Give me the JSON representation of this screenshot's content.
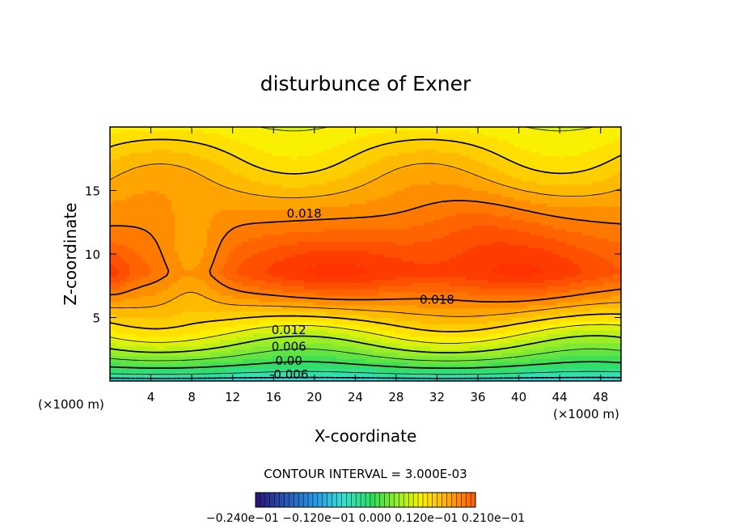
{
  "chart_data": {
    "type": "heatmap",
    "title": "disturbunce of Exner",
    "xlabel": "X-coordinate",
    "ylabel": "Z-coordinate",
    "x_unit": "(×1000 m)",
    "y_unit": "(×1000 m)",
    "xlim": [
      0,
      50
    ],
    "ylim": [
      0,
      20
    ],
    "x_ticks": [
      4,
      8,
      12,
      16,
      20,
      24,
      28,
      32,
      36,
      40,
      44,
      48
    ],
    "y_ticks": [
      5,
      10,
      15
    ],
    "contour_interval_text": "CONTOUR INTERVAL = 3.000E-03",
    "contour_labels": [
      {
        "text": "0.018",
        "x": 19,
        "z": 13.2
      },
      {
        "text": "0.018",
        "x": 32,
        "z": 6.4
      },
      {
        "text": "0.012",
        "x": 17.5,
        "z": 4.0
      },
      {
        "text": "0.006",
        "x": 17.5,
        "z": 2.7
      },
      {
        "text": "0.00",
        "x": 17.5,
        "z": 1.6
      },
      {
        "text": "-0.006",
        "x": 17.5,
        "z": 0.5
      }
    ],
    "colorbar": {
      "min": -0.024,
      "max": 0.021,
      "tick_labels_text": "−0.240e−01   −0.120e−01   0.000   0.120e−01   0.210e−01"
    },
    "field_description": {
      "min_value": -0.009,
      "max_value": 0.024,
      "max_centers": [
        {
          "x": 22,
          "z": 8.5
        },
        {
          "x": 40,
          "z": 8.5
        }
      ]
    }
  },
  "colors": {
    "background": "#ffffff",
    "axis": "#000000",
    "max_color": "#ff3300",
    "low_color": "#33ddcc"
  }
}
